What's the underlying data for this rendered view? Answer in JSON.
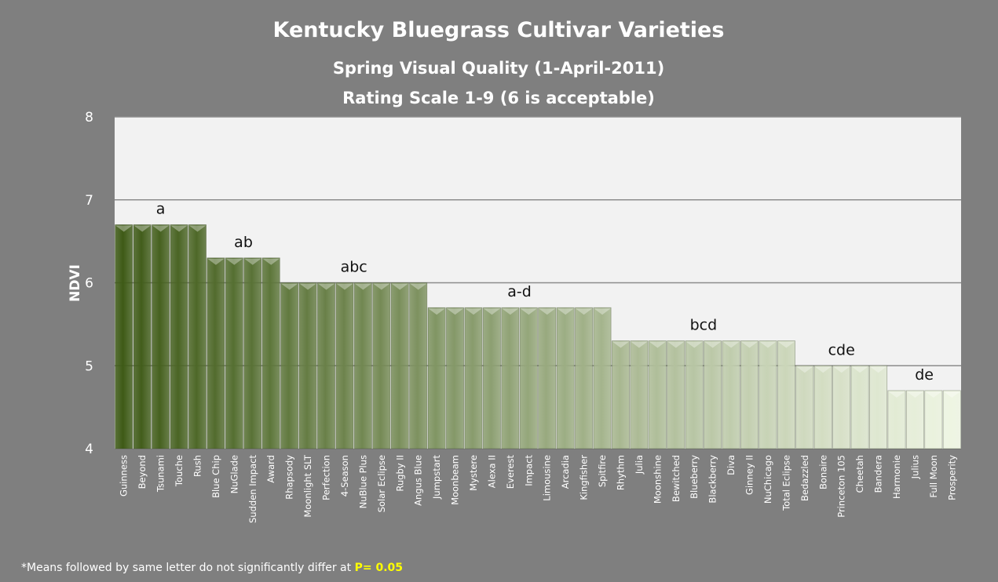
{
  "chart_data": {
    "type": "bar",
    "title": "Kentucky Bluegrass Cultivar Varieties",
    "subtitle": "Spring Visual Quality (1-April-2011)",
    "subtitle2": "Rating Scale 1-9 (6 is acceptable)",
    "xlabel": "",
    "ylabel": "NDVI",
    "ylim": [
      4,
      8
    ],
    "yticks": [
      4,
      5,
      6,
      7,
      8
    ],
    "grid": true,
    "categories": [
      "Guinness",
      "Beyond",
      "Tsunami",
      "Touche",
      "Rush",
      "Blue Chip",
      "NuGlade",
      "Sudden Impact",
      "Award",
      "Rhapsody",
      "Moonlight SLT",
      "Perfection",
      "4-Season",
      "NuBlue Plus",
      "Solar Eclipse",
      "Rugby II",
      "Angus Blue",
      "Jumpstart",
      "Moonbeam",
      "Mystere",
      "Alexa II",
      "Everest",
      "Impact",
      "Limousine",
      "Arcadia",
      "Kingfisher",
      "Spitfire",
      "Rhythm",
      "Julia",
      "Moonshine",
      "Bewitched",
      "Blueberry",
      "Blackberry",
      "Diva",
      "Ginney II",
      "NuChicago",
      "Total Eclipse",
      "Bedazzled",
      "Bonaire",
      "Princeton 105",
      "Cheetah",
      "Bandera",
      "Harmonie",
      "Julius",
      "Full Moon",
      "Prosperity"
    ],
    "values": [
      6.7,
      6.7,
      6.7,
      6.7,
      6.7,
      6.3,
      6.3,
      6.3,
      6.3,
      6.0,
      6.0,
      6.0,
      6.0,
      6.0,
      6.0,
      6.0,
      6.0,
      5.7,
      5.7,
      5.7,
      5.7,
      5.7,
      5.7,
      5.7,
      5.7,
      5.7,
      5.7,
      5.3,
      5.3,
      5.3,
      5.3,
      5.3,
      5.3,
      5.3,
      5.3,
      5.3,
      5.3,
      5.0,
      5.0,
      5.0,
      5.0,
      5.0,
      4.7,
      4.7,
      4.7,
      4.7
    ],
    "annotations": [
      {
        "text": "a",
        "first": "Guinness",
        "last": "Rush"
      },
      {
        "text": "ab",
        "first": "Blue Chip",
        "last": "Award"
      },
      {
        "text": "abc",
        "first": "Rhapsody",
        "last": "Angus Blue"
      },
      {
        "text": "a-d",
        "first": "Jumpstart",
        "last": "Spitfire"
      },
      {
        "text": "bcd",
        "first": "Rhythm",
        "last": "Total Eclipse"
      },
      {
        "text": "cde",
        "first": "Bedazzled",
        "last": "Bandera"
      },
      {
        "text": "de",
        "first": "Harmonie",
        "last": "Prosperity"
      }
    ],
    "bar_color_start": "#3e5a16",
    "bar_color_end": "#eef5e2"
  },
  "footnote": {
    "text": "*Means  followed by same letter do not significantly differ at ",
    "emphasis": "P= 0.05",
    "emphasis_color": "#ffff00"
  },
  "colors": {
    "background": "#7f7f7f",
    "plot_area": "#f2f2f2",
    "gridline": "#8c8c8c"
  }
}
